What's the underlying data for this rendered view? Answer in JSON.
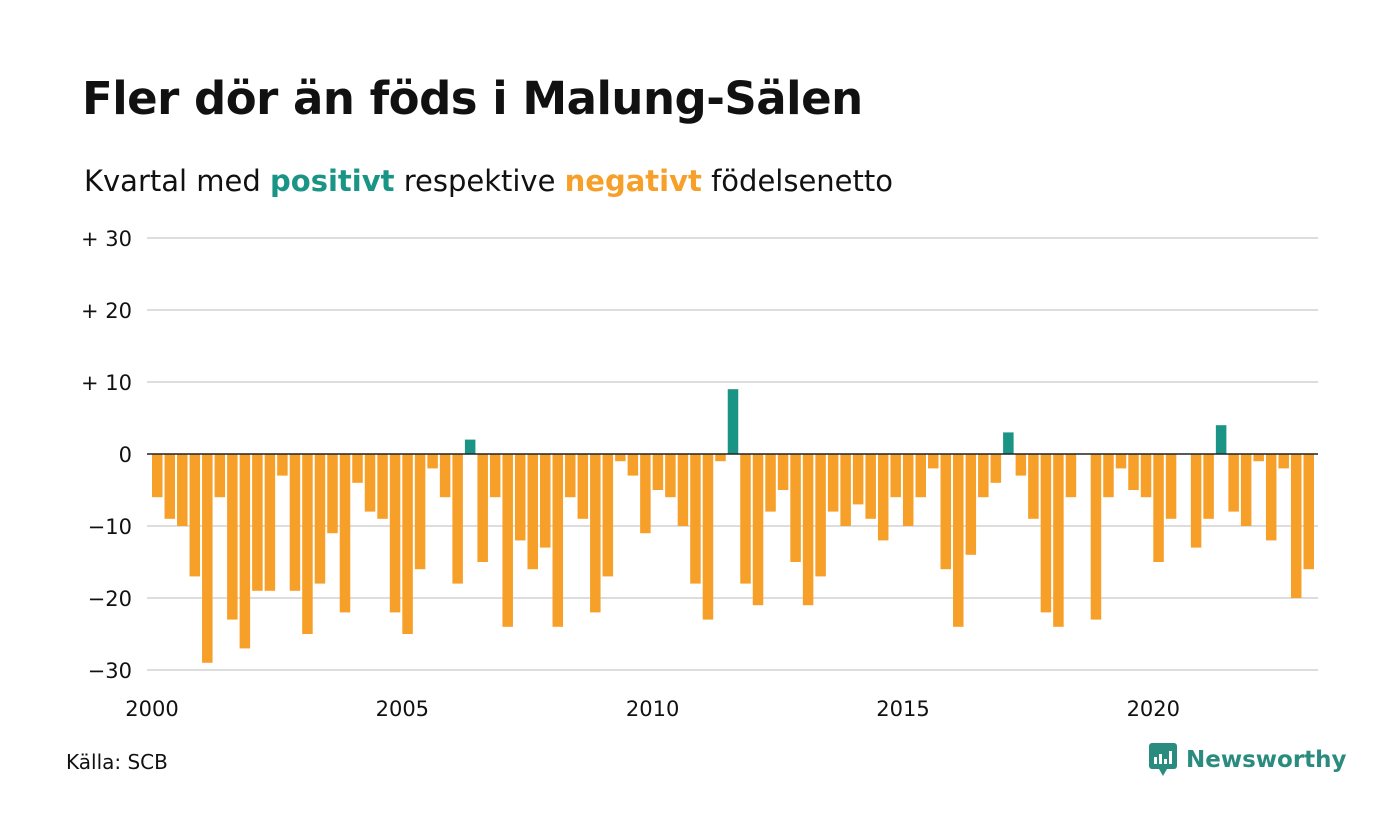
{
  "title": "Fler dör än föds i Malung-Sälen",
  "subtitle": {
    "prefix": "Kvartal med ",
    "positive_word": "positivt",
    "middle": " respektive ",
    "negative_word": "negativt",
    "suffix": " födelsenetto"
  },
  "source": "Källa: SCB",
  "brand": {
    "name": "Newsworthy",
    "icon": "newsworthy-logo-icon"
  },
  "colors": {
    "positive": "#1a9484",
    "negative": "#f6a02a",
    "grid": "#dddddd",
    "zero_line": "#222222"
  },
  "chart_data": {
    "type": "bar",
    "x_start": 2000,
    "x_end": 2023.25,
    "ylim": [
      -30,
      30
    ],
    "grid": true,
    "yticks": [
      {
        "value": 30,
        "label": "+ 30"
      },
      {
        "value": 20,
        "label": "+ 20"
      },
      {
        "value": 10,
        "label": "+ 10"
      },
      {
        "value": 0,
        "label": "0"
      },
      {
        "value": -10,
        "label": "−10"
      },
      {
        "value": -20,
        "label": "−20"
      },
      {
        "value": -30,
        "label": "−30"
      }
    ],
    "xticks": [
      {
        "value": 2000,
        "label": "2000"
      },
      {
        "value": 2005,
        "label": "2005"
      },
      {
        "value": 2010,
        "label": "2010"
      },
      {
        "value": 2015,
        "label": "2015"
      },
      {
        "value": 2020,
        "label": "2020"
      }
    ],
    "values": [
      -6,
      -9,
      -10,
      -17,
      -29,
      -6,
      -23,
      -27,
      -19,
      -19,
      -3,
      -19,
      -25,
      -18,
      -11,
      -22,
      -4,
      -8,
      -9,
      -22,
      -25,
      -16,
      -2,
      -6,
      -18,
      2,
      -15,
      -6,
      -24,
      -12,
      -16,
      -13,
      -24,
      -6,
      -9,
      -22,
      -17,
      -1,
      -3,
      -11,
      -5,
      -6,
      -10,
      -18,
      -23,
      -1,
      9,
      -18,
      -21,
      -8,
      -5,
      -15,
      -21,
      -17,
      -8,
      -10,
      -7,
      -9,
      -12,
      -6,
      -10,
      -6,
      -2,
      -16,
      -24,
      -14,
      -6,
      -4,
      3,
      -3,
      -9,
      -22,
      -24,
      -6,
      0,
      -23,
      -6,
      -2,
      -5,
      -6,
      -15,
      -9,
      0,
      -13,
      -9,
      4,
      -8,
      -10,
      -1,
      -12,
      -2,
      -20,
      -16
    ]
  }
}
